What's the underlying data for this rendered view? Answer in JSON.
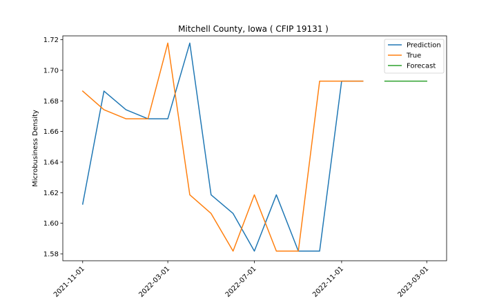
{
  "chart_data": {
    "type": "line",
    "title": "Mitchell County, Iowa ( CFIP 19131 )",
    "xlabel": "",
    "ylabel": "Microbusiness Density",
    "x_ticks": [
      "2021-11-01",
      "2022-03-01",
      "2022-07-01",
      "2022-11-01",
      "2023-03-01"
    ],
    "y_ticks": [
      "1.58",
      "1.60",
      "1.62",
      "1.64",
      "1.66",
      "1.68",
      "1.70",
      "1.72"
    ],
    "xlim": [
      "2021-10-04",
      "2023-03-29"
    ],
    "ylim": [
      1.5755,
      1.7225
    ],
    "grid": false,
    "legend_position": "top-right",
    "series": [
      {
        "name": "Prediction",
        "color": "#1f77b4",
        "x": [
          "2021-11-01",
          "2021-12-01",
          "2022-01-01",
          "2022-02-01",
          "2022-03-01",
          "2022-04-01",
          "2022-05-01",
          "2022-06-01",
          "2022-07-01",
          "2022-08-01",
          "2022-09-01",
          "2022-10-01",
          "2022-11-01",
          "2022-12-01"
        ],
        "values": [
          1.6125,
          1.6864,
          1.6742,
          1.6683,
          1.6683,
          1.7178,
          1.6186,
          1.6064,
          1.5818,
          1.6186,
          1.5818,
          1.5818,
          1.6929,
          1.6929
        ]
      },
      {
        "name": "True",
        "color": "#ff7f0e",
        "x": [
          "2021-11-01",
          "2021-12-01",
          "2022-01-01",
          "2022-02-01",
          "2022-03-01",
          "2022-04-01",
          "2022-05-01",
          "2022-06-01",
          "2022-07-01",
          "2022-08-01",
          "2022-09-01",
          "2022-10-01",
          "2022-11-01",
          "2022-12-01"
        ],
        "values": [
          1.6864,
          1.6742,
          1.6683,
          1.6683,
          1.7178,
          1.6186,
          1.6064,
          1.5818,
          1.6186,
          1.5818,
          1.5818,
          1.6929,
          1.6929,
          1.6929
        ]
      },
      {
        "name": "Forecast",
        "color": "#2ca02c",
        "x": [
          "2023-01-01",
          "2023-02-01",
          "2023-03-01"
        ],
        "values": [
          1.6929,
          1.6929,
          1.6929
        ]
      }
    ]
  }
}
